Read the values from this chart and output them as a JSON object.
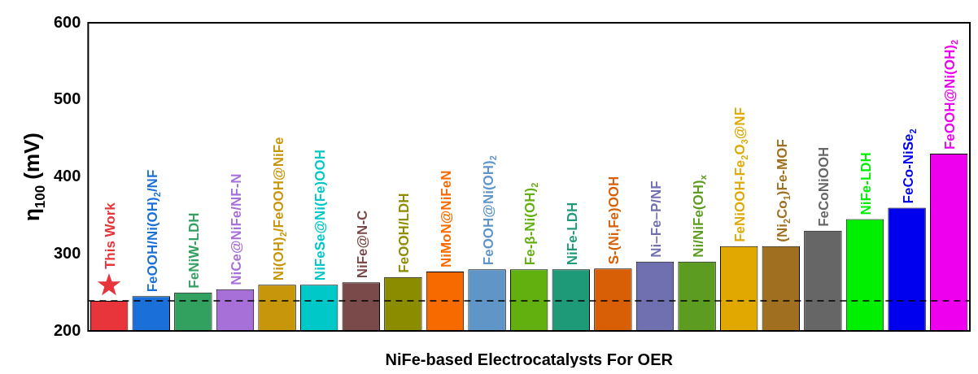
{
  "chart_data": {
    "type": "bar",
    "xlabel": "NiFe-based Electrocatalysts For OER",
    "ylabel": "η$_{100}$ (mV)",
    "categories": [
      "This Work",
      "FeOOH/Ni(OH)$_{2}$/NF",
      "FeNiW-LDH",
      "NiCe@NiFe/NF-N",
      "Ni(OH)$_{2}$/FeOOH@NiFe",
      "NiFeSe@Ni(Fe)OOH",
      "NiFe@N-C",
      "FeOOH/LDH",
      "NiMoN@NiFeN",
      "FeOOH@Ni(OH)$_{2}$",
      "Fe-β-Ni(OH)$_{2}$",
      "NiFe-LDH",
      "S-(Ni,Fe)OOH",
      "Ni–Fe–P/NF",
      "Ni/NiFe(OH)$_{x}$",
      "FeNiOOH-Fe$_{2}$O$_{3}$@NF",
      "(Ni$_{2}$Co$_{1}$)Fe-MOF",
      "FeCoNiOOH",
      "NiFe-LDH",
      "FeCo-NiSe$_{2}$",
      "FeOOH@Ni(OH)$_{2}$"
    ],
    "values": [
      239,
      245,
      250,
      254,
      260,
      260,
      263,
      270,
      277,
      280,
      280,
      280,
      281,
      290,
      290,
      310,
      310,
      330,
      345,
      360,
      430
    ],
    "colors": [
      "#e8353c",
      "#1a6fd8",
      "#32a05f",
      "#a770d8",
      "#c8960a",
      "#00c8c8",
      "#7a4a4a",
      "#8c8c00",
      "#f76a00",
      "#6095c8",
      "#62b010",
      "#1e9a78",
      "#d85f05",
      "#7070b0",
      "#5c9c20",
      "#e0a800",
      "#a07020",
      "#666666",
      "#00ee00",
      "#0000ee",
      "#ee00ee"
    ],
    "ylim": [
      200,
      600
    ],
    "yticks": [
      200,
      300,
      400,
      500,
      600
    ],
    "grid": false,
    "tick_labels": "y",
    "ref_lines": [
      {
        "axis": "y",
        "value": 239,
        "color": "#000000",
        "line_style": "dashed"
      }
    ]
  }
}
